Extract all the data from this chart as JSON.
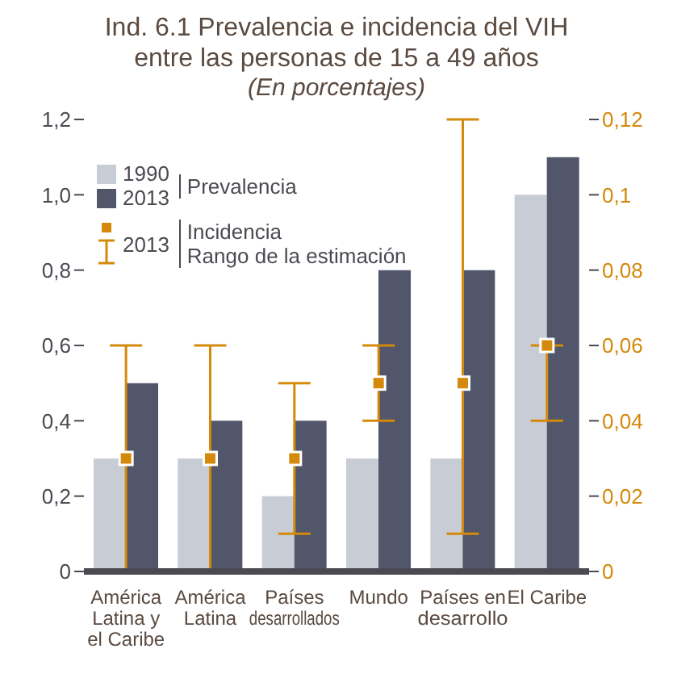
{
  "chart_data": {
    "type": "bar",
    "title": "Ind. 6.1 Prevalencia e incidencia del VIH entre las personas de 15 a 49 años",
    "subtitle": "(En porcentajes)",
    "categories": [
      "América Latina y el Caribe",
      "América Latina",
      "Países desarrollados",
      "Mundo",
      "Países en desarrollo",
      "El Caribe"
    ],
    "series": [
      {
        "name": "1990",
        "color": "#c8ccd4",
        "values": [
          0.3,
          0.3,
          0.2,
          0.3,
          0.3,
          1.0
        ]
      },
      {
        "name": "2013",
        "color": "#52566a",
        "values": [
          0.5,
          0.4,
          0.4,
          0.8,
          0.8,
          1.1
        ]
      },
      {
        "name": "2013",
        "type": "scatter",
        "axis": "y2",
        "color": "#d4890a",
        "marker": "square",
        "values": [
          0.03,
          0.03,
          0.03,
          0.05,
          0.05,
          0.06
        ],
        "errors": [
          [
            0,
            0.06
          ],
          [
            0,
            0.06
          ],
          [
            0.01,
            0.05
          ],
          [
            0.04,
            0.06
          ],
          [
            0.01,
            0.12
          ],
          [
            0.04,
            0.06
          ]
        ]
      }
    ],
    "annotations": [
      "Prevalencia",
      "Incidencia\nRango de la estimación"
    ],
    "ylim": [
      0,
      1.2
    ],
    "yticks": [
      0,
      {
        "value": 0.2,
        "label": "0,2"
      },
      {
        "value": 0.4,
        "label": "0,4"
      },
      {
        "value": 0.6,
        "label": "0,6"
      },
      {
        "value": 0.8,
        "label": "0,8"
      },
      {
        "value": 1.0,
        "label": "1,0"
      },
      {
        "value": 1.2,
        "label": "1,2"
      }
    ],
    "y2lim": [
      0,
      0.12
    ],
    "y2ticks": [
      0,
      {
        "value": 0.02,
        "label": "0,02"
      },
      {
        "value": 0.04,
        "label": "0,04"
      },
      {
        "value": 0.06,
        "label": "0,06"
      },
      {
        "value": 0.08,
        "label": "0,08"
      },
      {
        "value": 0.1,
        "label": "0,1"
      },
      {
        "value": 0.12,
        "label": "0,12"
      }
    ],
    "grid": false,
    "legend": "top left"
  }
}
